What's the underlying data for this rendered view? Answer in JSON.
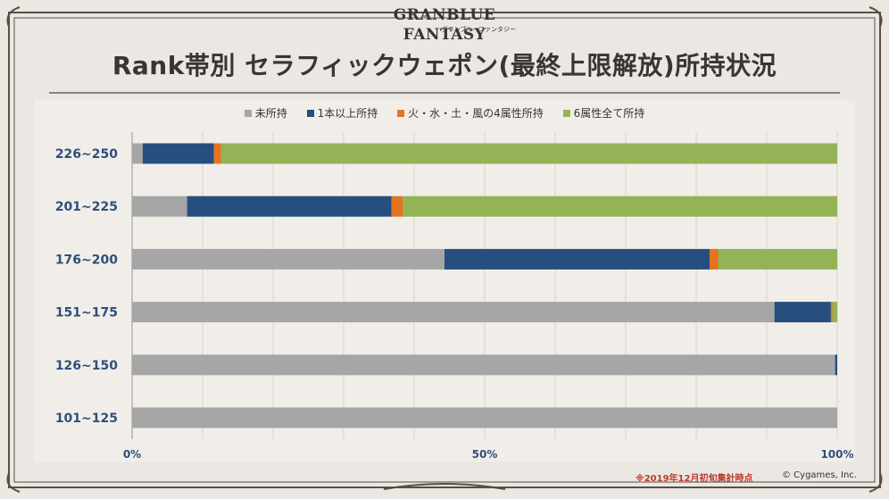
{
  "logo": {
    "main": "GRANBLUE FANTASY",
    "sub": "グランブルーファンタジー"
  },
  "title": "Rank帯別 セラフィックウェポン(最終上限解放)所持状況",
  "footnote": "※2019年12月初旬集計時点",
  "copyright": "© Cygames, Inc.",
  "chart_data": {
    "type": "bar",
    "orientation": "horizontal",
    "stacked": true,
    "categories": [
      "226~250",
      "201~225",
      "176~200",
      "151~175",
      "126~150",
      "101~125"
    ],
    "series": [
      {
        "name": "未所持",
        "color": "#a6a6a6",
        "values": [
          1.5,
          7.8,
          44.3,
          91.1,
          99.7,
          100
        ]
      },
      {
        "name": "1本以上所持",
        "color": "#264e7e",
        "values": [
          10.1,
          29.0,
          37.6,
          8.0,
          0.3,
          0
        ]
      },
      {
        "name": "火・水・土・風の4属性所持",
        "color": "#e5731f",
        "values": [
          1.0,
          1.6,
          1.2,
          0.2,
          0,
          0
        ]
      },
      {
        "name": "6属性全て所持",
        "color": "#94b256",
        "values": [
          87.4,
          61.6,
          16.9,
          0.7,
          0,
          0
        ]
      }
    ],
    "xlim": [
      0,
      100
    ],
    "x_ticks": [
      "0%",
      "50%",
      "100%"
    ],
    "grid": true,
    "legend_position": "top"
  }
}
